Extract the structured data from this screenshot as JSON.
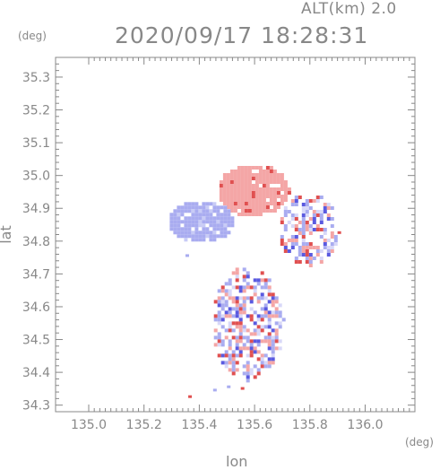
{
  "header": {
    "altitude_label": "ALT(km) 2.0",
    "datetime": "2020/09/17 18:28:31"
  },
  "axes": {
    "y_unit": "(deg)",
    "x_unit": "(deg)",
    "y_label": "lat",
    "x_label": "lon"
  },
  "chart_data": {
    "type": "heatmap",
    "title": "2020/09/17 18:28:31",
    "xlabel": "lon",
    "ylabel": "lat",
    "xlim": [
      134.88,
      136.18
    ],
    "ylim": [
      34.28,
      35.36
    ],
    "x_ticks": [
      "135.0",
      "135.2",
      "135.4",
      "135.6",
      "135.8",
      "136.0"
    ],
    "y_ticks": [
      "34.3",
      "34.4",
      "34.5",
      "34.6",
      "34.7",
      "34.8",
      "34.9",
      "35.0",
      "35.1",
      "35.2",
      "35.3"
    ],
    "x_tick_values": [
      135.0,
      135.2,
      135.4,
      135.6,
      135.8,
      136.0
    ],
    "y_tick_values": [
      34.3,
      34.4,
      34.5,
      34.6,
      34.7,
      34.8,
      34.9,
      35.0,
      35.1,
      35.2,
      35.3
    ],
    "colors": {
      "positive": "#f4a6a6",
      "negative": "#a9acf0",
      "strong_positive": "#e05050",
      "strong_negative": "#5a5ae0"
    },
    "regions": [
      {
        "name": "northern-positive-echo",
        "sign": "positive",
        "lon": [
          135.46,
          135.72
        ],
        "lat": [
          34.88,
          35.04
        ]
      },
      {
        "name": "western-negative-echo",
        "sign": "negative",
        "lon": [
          135.28,
          135.52
        ],
        "lat": [
          34.8,
          34.93
        ]
      },
      {
        "name": "eastern-scattered-echo",
        "sign": "mixed",
        "lon": [
          135.68,
          135.9
        ],
        "lat": [
          34.73,
          34.95
        ]
      },
      {
        "name": "southern-mixed-echo",
        "sign": "mixed",
        "lon": [
          135.44,
          135.7
        ],
        "lat": [
          34.38,
          34.73
        ]
      }
    ]
  }
}
